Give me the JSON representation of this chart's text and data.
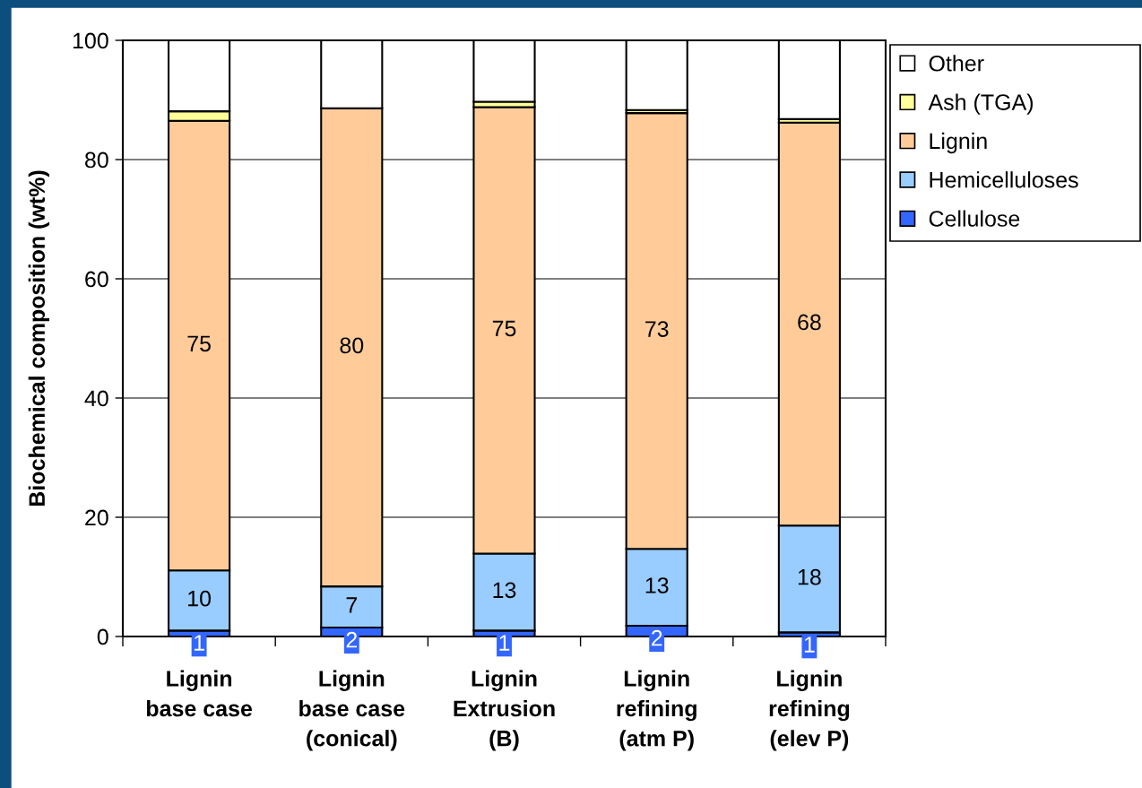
{
  "chart_data": {
    "type": "bar",
    "stacked": true,
    "ylabel": "Biochemical composition (wt%)",
    "categories": [
      "Lignin\nbase case",
      "Lignin\nbase case\n(conical)",
      "Lignin\nExtrusion\n(B)",
      "Lignin\nrefining\n(atm P)",
      "Lignin\nrefining\n(elev P)"
    ],
    "ylim": [
      0,
      100
    ],
    "yticks": [
      0,
      20,
      40,
      60,
      80,
      100
    ],
    "grid": "y",
    "legend": "right",
    "series": [
      {
        "name": "Cellulose",
        "color": "#3366ff",
        "values": [
          1.0,
          1.5,
          1.0,
          1.8,
          0.7
        ],
        "value_labels": [
          "1",
          "2",
          "1",
          "2",
          "1"
        ]
      },
      {
        "name": "Hemicelluloses",
        "color": "#99ccff",
        "values": [
          10.1,
          6.9,
          12.9,
          12.9,
          17.9
        ],
        "value_labels": [
          "10",
          "7",
          "13",
          "13",
          "18"
        ]
      },
      {
        "name": "Lignin",
        "color": "#ffcc99",
        "values": [
          75.4,
          80.2,
          74.9,
          73.1,
          67.6
        ],
        "value_labels": [
          "75",
          "80",
          "75",
          "73",
          "68"
        ]
      },
      {
        "name": "Ash (TGA)",
        "color": "#ffff99",
        "values": [
          1.6,
          0,
          0.9,
          0.5,
          0.6
        ]
      },
      {
        "name": "Other",
        "color": "#ffffff",
        "values": [
          11.9,
          11.4,
          10.3,
          11.7,
          13.2
        ]
      }
    ]
  }
}
